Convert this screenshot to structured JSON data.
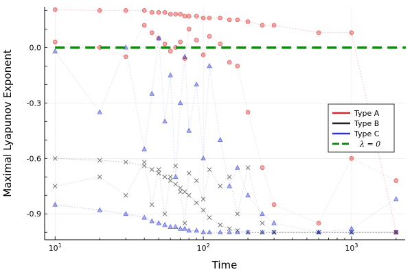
{
  "chart_data": {
    "type": "scatter",
    "title": "",
    "xlabel": "Time",
    "ylabel": "Maximal Lyapunov Exponent",
    "xscale": "log10",
    "xlim": [
      8.5,
      2300
    ],
    "ylim": [
      -1.04,
      0.22
    ],
    "grid": true,
    "legend_position": "right",
    "x_ticks": [
      {
        "value": 10,
        "base": "10",
        "exp": "1"
      },
      {
        "value": 100,
        "base": "10",
        "exp": "2"
      },
      {
        "value": 1000,
        "base": "10",
        "exp": "3"
      }
    ],
    "y_ticks": [
      {
        "value": 0.0,
        "label": "0.0"
      },
      {
        "value": -0.3,
        "label": "-0.3"
      },
      {
        "value": -0.6,
        "label": "-0.6"
      },
      {
        "value": -0.9,
        "label": "-0.9"
      }
    ],
    "colors": {
      "typeA": "#d62728",
      "typeB": "#222222",
      "typeC": "#2b35c8",
      "ref": "#118811"
    },
    "x": [
      10,
      20,
      30,
      40,
      45,
      50,
      55,
      60,
      65,
      70,
      75,
      80,
      90,
      100,
      110,
      130,
      150,
      170,
      200,
      250,
      300,
      600,
      1000,
      2000
    ],
    "series": [
      {
        "name": "Type A",
        "marker": "circle",
        "values": [
          0.205,
          0.2,
          0.2,
          0.2,
          0.19,
          0.19,
          0.19,
          0.18,
          0.18,
          0.18,
          0.17,
          0.17,
          0.17,
          0.16,
          0.16,
          0.16,
          0.15,
          0.15,
          0.14,
          0.12,
          0.12,
          0.08,
          0.08,
          -1.0
        ],
        "scatter_values": [
          0.03,
          0.0,
          -0.05,
          0.12,
          0.08,
          0.05,
          0.02,
          -0.02,
          0.0,
          0.03,
          -0.06,
          0.1,
          0.04,
          -0.04,
          0.06,
          0.02,
          -0.08,
          -0.1,
          -0.35,
          -0.65,
          -0.85,
          -0.95,
          -0.6,
          -0.72
        ]
      },
      {
        "name": "Type B",
        "marker": "cross",
        "values": [
          -0.6,
          -0.61,
          -0.62,
          -0.64,
          -0.66,
          -0.68,
          -0.7,
          -0.72,
          -0.74,
          -0.76,
          -0.78,
          -0.8,
          -0.84,
          -0.88,
          -0.92,
          -0.96,
          -0.98,
          -0.99,
          -1.0,
          -1.0,
          -1.0,
          -1.0,
          -1.0,
          -1.0
        ],
        "scatter_values": [
          -0.75,
          -0.7,
          -0.8,
          -0.62,
          -0.85,
          -0.66,
          -0.9,
          -0.7,
          -0.64,
          -0.78,
          -0.95,
          -0.68,
          -0.72,
          -0.82,
          -0.66,
          -0.75,
          -0.7,
          -0.9,
          -0.65,
          -0.95,
          -1.0,
          -1.0,
          -1.0,
          -1.0
        ]
      },
      {
        "name": "Type C",
        "marker": "triangle",
        "values": [
          -0.85,
          -0.88,
          -0.9,
          -0.92,
          -0.94,
          -0.95,
          -0.96,
          -0.97,
          -0.97,
          -0.98,
          -0.98,
          -0.99,
          -0.99,
          -1.0,
          -1.0,
          -1.0,
          -1.0,
          -1.0,
          -1.0,
          -1.0,
          -1.0,
          -1.0,
          -1.0,
          -1.0
        ],
        "scatter_values": [
          -0.02,
          -0.35,
          0.0,
          -0.55,
          -0.25,
          0.05,
          -0.4,
          -0.15,
          -0.7,
          -0.3,
          -0.05,
          -0.45,
          -0.2,
          -0.6,
          -0.1,
          -0.5,
          -0.75,
          -0.65,
          -0.8,
          -0.9,
          -0.95,
          -1.0,
          -0.98,
          -0.82
        ]
      }
    ],
    "reference_line": {
      "name": "λ = 0",
      "y": 0,
      "style": "dashed"
    },
    "legend": [
      {
        "label": "Type A",
        "style": "line",
        "color_key": "typeA"
      },
      {
        "label": "Type B",
        "style": "line",
        "color_key": "typeB"
      },
      {
        "label": "Type C",
        "style": "line",
        "color_key": "typeC"
      },
      {
        "label": "λ = 0",
        "style": "dash",
        "color_key": "ref"
      }
    ]
  }
}
